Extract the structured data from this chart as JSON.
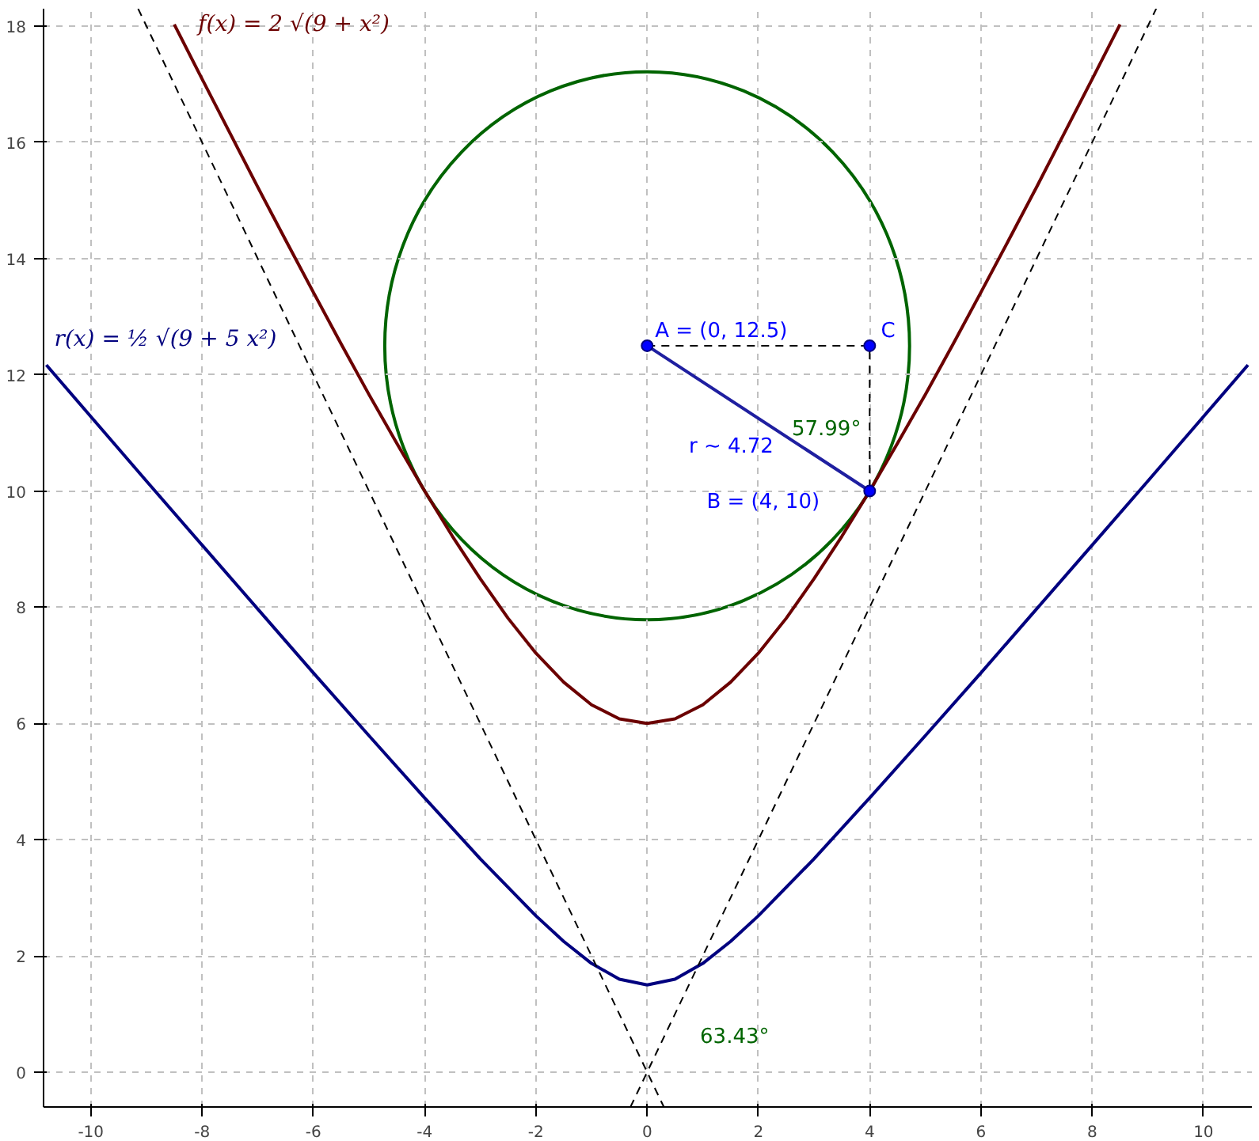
{
  "chart_data": {
    "type": "line",
    "xlim": [
      -10.85,
      10.87
    ],
    "ylim": [
      -0.6,
      18.3
    ],
    "xticks": [
      -10,
      -8,
      -6,
      -4,
      -2,
      0,
      2,
      4,
      6,
      8,
      10
    ],
    "yticks": [
      0,
      2,
      4,
      6,
      8,
      10,
      12,
      14,
      16,
      18
    ],
    "grid": true,
    "series": [
      {
        "name": "f(x) = 2 √(9 + x²)",
        "color": "#6b0000",
        "line_style": "solid",
        "x": [
          -8.5,
          -8,
          -7.5,
          -7,
          -6.5,
          -6,
          -5.5,
          -5,
          -4.5,
          -4,
          -3.5,
          -3,
          -2.5,
          -2,
          -1.5,
          -1,
          -0.5,
          0,
          0.5,
          1,
          1.5,
          2,
          2.5,
          3,
          3.5,
          4,
          4.5,
          5,
          5.5,
          6,
          6.5,
          7,
          7.5,
          8,
          8.5
        ],
        "values": [
          18.03,
          17.09,
          16.16,
          15.23,
          14.32,
          13.42,
          12.53,
          11.66,
          10.82,
          10,
          9.22,
          8.49,
          7.81,
          7.21,
          6.71,
          6.32,
          6.08,
          6,
          6.08,
          6.32,
          6.71,
          7.21,
          7.81,
          8.49,
          9.22,
          10,
          10.82,
          11.66,
          12.53,
          13.42,
          14.32,
          15.23,
          16.16,
          17.09,
          18.03
        ]
      },
      {
        "name": "r(x) = ½ √(9 + 5 x²)",
        "color": "#00007f",
        "line_style": "solid",
        "x": [
          -10.8,
          -10,
          -9,
          -8,
          -7,
          -6,
          -5,
          -4,
          -3,
          -2,
          -1.5,
          -1,
          -0.5,
          0,
          0.5,
          1,
          1.5,
          2,
          3,
          4,
          5,
          6,
          7,
          8,
          9,
          10,
          10.8
        ],
        "values": [
          12.17,
          11.28,
          10.17,
          9.07,
          7.97,
          6.87,
          5.79,
          4.72,
          3.67,
          2.69,
          2.25,
          1.87,
          1.6,
          1.5,
          1.6,
          1.87,
          2.25,
          2.69,
          3.67,
          4.72,
          5.79,
          6.87,
          7.97,
          9.07,
          10.17,
          11.28,
          12.17
        ]
      },
      {
        "color": "#000000",
        "line_style": "dashed",
        "x": [
          -0.3,
          9.15
        ],
        "values": [
          -0.6,
          18.3
        ]
      },
      {
        "color": "#000000",
        "line_style": "dashed",
        "x": [
          -9.15,
          0.3
        ],
        "values": [
          18.3,
          -0.6
        ]
      },
      {
        "color": "#000000",
        "line_style": "dashed",
        "x": [
          0,
          4,
          4
        ],
        "values": [
          12.5,
          12.5,
          10
        ]
      },
      {
        "color": "#1f1fa0",
        "line_style": "solid",
        "x": [
          0,
          4
        ],
        "values": [
          12.5,
          10
        ]
      },
      {
        "type": "scatter",
        "color": "#0000ff",
        "marker": "circle",
        "x": [
          0,
          4,
          4
        ],
        "values": [
          12.5,
          10,
          12.5
        ]
      }
    ],
    "annotations": [
      "A = (0, 12.5)",
      "B = (4, 10)",
      "C",
      "r ~ 4.72",
      "57.99°",
      "63.43°"
    ]
  }
}
